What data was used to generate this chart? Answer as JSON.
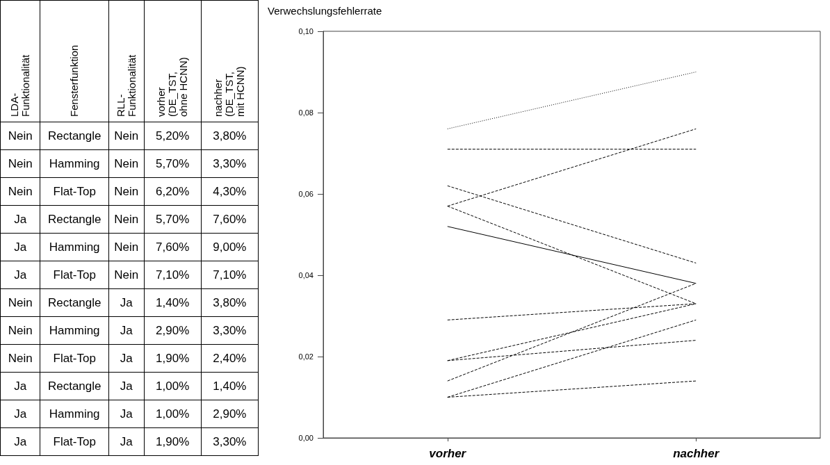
{
  "chart_data": [
    {
      "type": "other",
      "annotations": [
        "LDA-\nFunktionalität",
        "Fensterfunktion",
        "RLL-\nFunktionalität",
        "vorher\n(DE_TST,\nohne HCNN)",
        "nachher\n(DE_TST,\nmit HCNN)",
        "Nein",
        "Rectangle",
        "Nein",
        "5,20%",
        "3,80%",
        "Nein",
        "Hamming",
        "Nein",
        "5,70%",
        "3,30%",
        "Nein",
        "Flat-Top",
        "Nein",
        "6,20%",
        "4,30%",
        "Ja",
        "Rectangle",
        "Nein",
        "5,70%",
        "7,60%",
        "Ja",
        "Hamming",
        "Nein",
        "7,60%",
        "9,00%",
        "Ja",
        "Flat-Top",
        "Nein",
        "7,10%",
        "7,10%",
        "Nein",
        "Rectangle",
        "Ja",
        "1,40%",
        "3,80%",
        "Nein",
        "Hamming",
        "Ja",
        "2,90%",
        "3,30%",
        "Nein",
        "Flat-Top",
        "Ja",
        "1,90%",
        "2,40%",
        "Ja",
        "Rectangle",
        "Ja",
        "1,00%",
        "1,40%",
        "Ja",
        "Hamming",
        "Ja",
        "1,00%",
        "2,90%",
        "Ja",
        "Flat-Top",
        "Ja",
        "1,90%",
        "3,30%"
      ]
    },
    {
      "type": "line",
      "ylabel": "Verwechslungsfehlerrate",
      "categories": [
        "vorher",
        "nachher"
      ],
      "ylim": [
        0,
        0.1
      ],
      "yticks": [
        {
          "value": 0,
          "label": "0,00"
        },
        {
          "value": 0.02,
          "label": "0,02"
        },
        {
          "value": 0.04,
          "label": "0,04"
        },
        {
          "value": 0.06,
          "label": "0,06"
        },
        {
          "value": 0.08,
          "label": "0,08"
        },
        {
          "value": 0.1,
          "label": "0,10"
        }
      ],
      "marker": "none",
      "line_style": "dashed",
      "series": [
        {
          "color": "#000000",
          "line_style": "solid",
          "values": [
            0.052,
            0.038
          ]
        },
        {
          "color": "#000000",
          "values": [
            0.057,
            0.033
          ]
        },
        {
          "color": "#000000",
          "values": [
            0.062,
            0.043
          ]
        },
        {
          "color": "#000000",
          "values": [
            0.057,
            0.076
          ]
        },
        {
          "color": "#000000",
          "line_style": "dotted",
          "values": [
            0.076,
            0.09
          ]
        },
        {
          "color": "#000000",
          "values": [
            0.071,
            0.071
          ]
        },
        {
          "color": "#000000",
          "values": [
            0.014,
            0.038
          ]
        },
        {
          "color": "#000000",
          "values": [
            0.029,
            0.033
          ]
        },
        {
          "color": "#000000",
          "values": [
            0.019,
            0.024
          ]
        },
        {
          "color": "#000000",
          "values": [
            0.01,
            0.014
          ]
        },
        {
          "color": "#000000",
          "values": [
            0.01,
            0.029
          ]
        },
        {
          "color": "#000000",
          "values": [
            0.019,
            0.033
          ]
        }
      ]
    }
  ]
}
